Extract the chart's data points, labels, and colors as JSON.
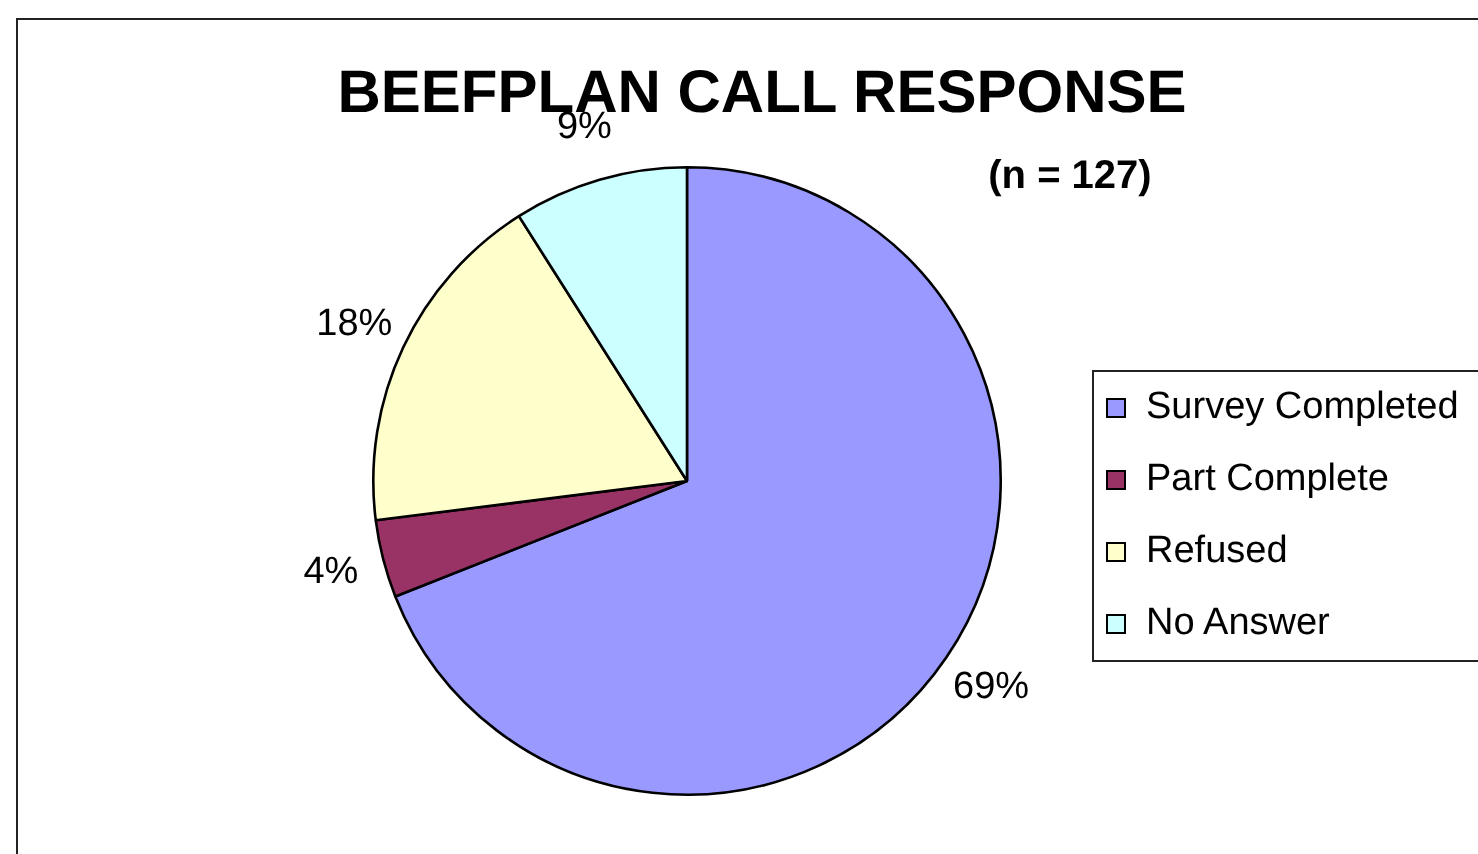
{
  "chart_data": {
    "type": "pie",
    "title": "BEEFPLAN CALL RESPONSE",
    "subtitle": "(n = 127)",
    "categories": [
      "Survey Completed",
      "Part Complete",
      "Refused",
      "No Answer"
    ],
    "values": [
      69,
      4,
      18,
      9
    ],
    "colors": [
      "#9999ff",
      "#993366",
      "#ffffcc",
      "#ccffff"
    ],
    "value_labels": [
      "69%",
      "4%",
      "18%",
      "9%"
    ],
    "legend": "right"
  }
}
